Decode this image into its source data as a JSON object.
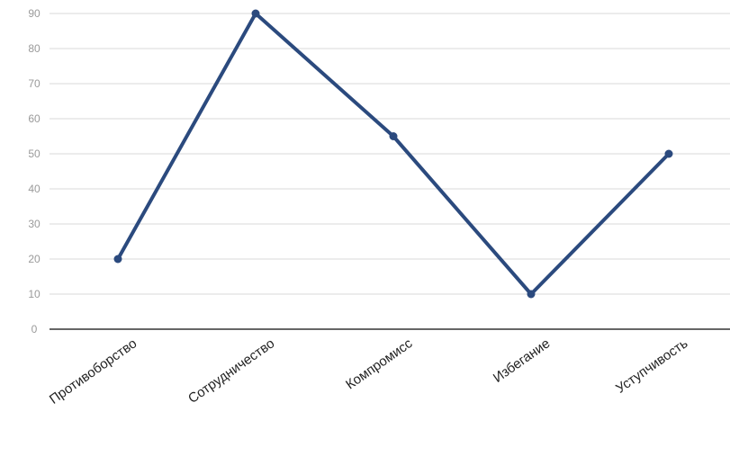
{
  "chart_data": {
    "type": "line",
    "title": "",
    "xlabel": "",
    "ylabel": "",
    "categories": [
      "Противоборство",
      "Сотрудничество",
      "Компромисс",
      "Избегание",
      "Уступчивость"
    ],
    "series": [
      {
        "values": [
          20,
          90,
          55,
          10,
          50
        ],
        "color": "#2b4a7e"
      }
    ],
    "ylim": [
      0,
      90
    ],
    "yticks": [
      0,
      10,
      20,
      30,
      40,
      50,
      60,
      70,
      80,
      90
    ],
    "grid": true,
    "legend": "none"
  }
}
